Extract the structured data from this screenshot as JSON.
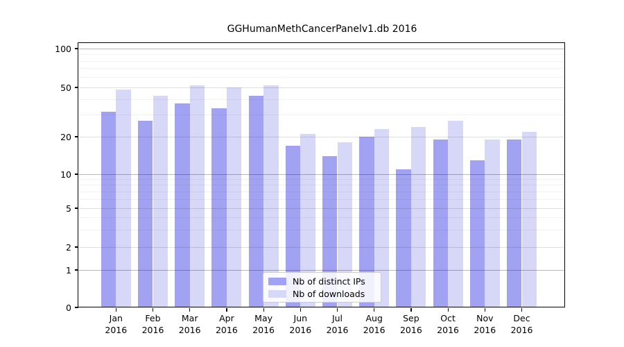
{
  "chart_data": {
    "type": "bar",
    "title": "GGHumanMethCancerPanelv1.db 2016",
    "categories": [
      "Jan",
      "Feb",
      "Mar",
      "Apr",
      "May",
      "Jun",
      "Jul",
      "Aug",
      "Sep",
      "Oct",
      "Nov",
      "Dec"
    ],
    "category_year": "2016",
    "series": [
      {
        "name": "Nb of distinct IPs",
        "color": "#a2a2f2",
        "values": [
          32,
          27,
          37,
          34,
          43,
          17,
          14,
          20,
          11,
          19,
          13,
          19
        ]
      },
      {
        "name": "Nb of downloads",
        "color": "#d7d7f8",
        "values": [
          48,
          43,
          52,
          50,
          52,
          21,
          18,
          23,
          24,
          27,
          19,
          22
        ]
      }
    ],
    "yscale": "symlog",
    "y_ticks": [
      0,
      1,
      2,
      5,
      10,
      20,
      50,
      100
    ],
    "ylim": [
      0,
      110
    ],
    "xlabel": "",
    "ylabel": "",
    "grid": true,
    "legend_position": "inside-bottom-center"
  }
}
